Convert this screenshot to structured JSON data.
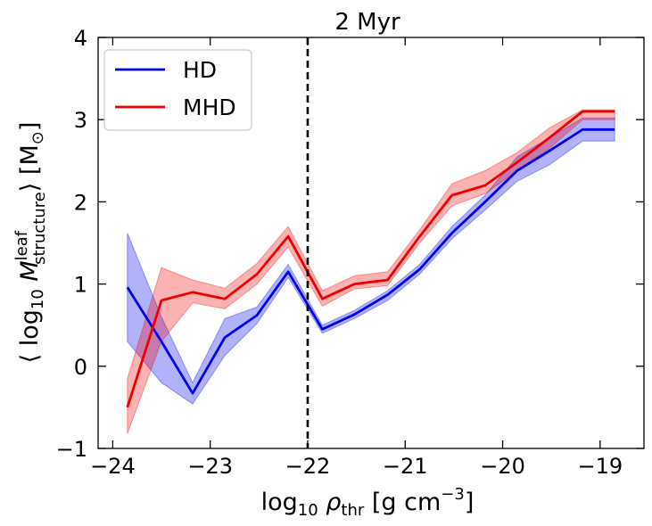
{
  "chart_data": {
    "type": "line",
    "title": "2 Myr",
    "xlabel": {
      "prefix": "log",
      "sub10": "10",
      "rho": "ρ",
      "subthr": "thr",
      "unit_open": "[g cm",
      "exp": "−3",
      "unit_close": "]"
    },
    "ylabel": {
      "open": "⟨ log",
      "sub10": "10",
      "M": "M",
      "sup": "leaf",
      "sub": "structure",
      "close": "⟩ [M",
      "sun": "⊙",
      "end": "]"
    },
    "xlim": [
      -24.15,
      -18.55
    ],
    "ylim": [
      -1,
      4
    ],
    "xticks": [
      -24,
      -23,
      -22,
      -21,
      -20,
      -19
    ],
    "yticks": [
      -1,
      0,
      1,
      2,
      3,
      4
    ],
    "xtick_labels": [
      "−24",
      "−23",
      "−22",
      "−21",
      "−20",
      "−19"
    ],
    "ytick_labels": [
      "−1",
      "0",
      "1",
      "2",
      "3",
      "4"
    ],
    "vline": {
      "x": -22.0,
      "style": "dashed",
      "color": "#000000"
    },
    "legend": {
      "position": "top-left",
      "entries": [
        "HD",
        "MHD"
      ]
    },
    "series": [
      {
        "name": "HD",
        "color": "#0000ee",
        "x": [
          -23.85,
          -23.5,
          -23.18,
          -22.85,
          -22.52,
          -22.2,
          -21.85,
          -21.52,
          -21.18,
          -20.85,
          -20.52,
          -20.18,
          -19.85,
          -19.52,
          -19.18,
          -18.85
        ],
        "y": [
          0.96,
          0.3,
          -0.33,
          0.35,
          0.62,
          1.15,
          0.45,
          0.63,
          0.87,
          1.18,
          1.62,
          2.0,
          2.38,
          2.62,
          2.88,
          2.88
        ],
        "lower": [
          0.3,
          -0.2,
          -0.46,
          0.13,
          0.52,
          1.08,
          0.4,
          0.58,
          0.8,
          1.12,
          1.55,
          1.9,
          2.25,
          2.45,
          2.74,
          2.74
        ],
        "upper": [
          1.62,
          0.6,
          -0.2,
          0.58,
          0.72,
          1.24,
          0.5,
          0.68,
          0.92,
          1.24,
          1.7,
          2.08,
          2.55,
          2.78,
          3.02,
          3.02
        ]
      },
      {
        "name": "MHD",
        "color": "#ee0000",
        "x": [
          -23.85,
          -23.5,
          -23.18,
          -22.85,
          -22.52,
          -22.2,
          -21.85,
          -21.52,
          -21.18,
          -20.85,
          -20.52,
          -20.18,
          -19.85,
          -19.52,
          -19.18,
          -18.85
        ],
        "y": [
          -0.5,
          0.8,
          0.9,
          0.82,
          1.12,
          1.58,
          0.82,
          1.0,
          1.05,
          1.58,
          2.08,
          2.2,
          2.48,
          2.78,
          3.1,
          3.1
        ],
        "lower": [
          -0.82,
          0.3,
          0.77,
          0.7,
          1.0,
          1.45,
          0.73,
          0.94,
          0.98,
          1.5,
          1.95,
          2.1,
          2.38,
          2.65,
          3.0,
          3.0
        ],
        "upper": [
          -0.15,
          1.2,
          1.05,
          0.95,
          1.25,
          1.7,
          0.92,
          1.1,
          1.15,
          1.66,
          2.22,
          2.38,
          2.6,
          2.9,
          3.12,
          3.12
        ]
      }
    ]
  }
}
